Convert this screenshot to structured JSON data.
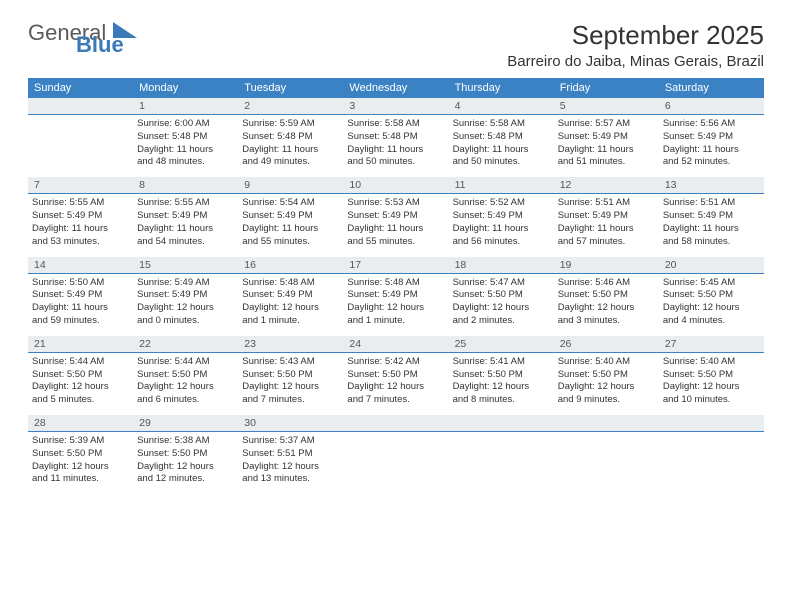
{
  "logo": {
    "general": "General",
    "blue": "Blue"
  },
  "title": "September 2025",
  "location": "Barreiro do Jaiba, Minas Gerais, Brazil",
  "colors": {
    "header_bg": "#3b82c4",
    "header_text": "#ffffff",
    "daynum_bg": "#e9edf0",
    "daynum_text": "#555555",
    "body_text": "#333333",
    "logo_gray": "#5a5a5a",
    "logo_blue": "#3a7ab8"
  },
  "day_names": [
    "Sunday",
    "Monday",
    "Tuesday",
    "Wednesday",
    "Thursday",
    "Friday",
    "Saturday"
  ],
  "weeks": [
    {
      "nums": [
        "",
        "1",
        "2",
        "3",
        "4",
        "5",
        "6"
      ],
      "cells": [
        null,
        {
          "sunrise": "Sunrise: 6:00 AM",
          "sunset": "Sunset: 5:48 PM",
          "day1": "Daylight: 11 hours",
          "day2": "and 48 minutes."
        },
        {
          "sunrise": "Sunrise: 5:59 AM",
          "sunset": "Sunset: 5:48 PM",
          "day1": "Daylight: 11 hours",
          "day2": "and 49 minutes."
        },
        {
          "sunrise": "Sunrise: 5:58 AM",
          "sunset": "Sunset: 5:48 PM",
          "day1": "Daylight: 11 hours",
          "day2": "and 50 minutes."
        },
        {
          "sunrise": "Sunrise: 5:58 AM",
          "sunset": "Sunset: 5:48 PM",
          "day1": "Daylight: 11 hours",
          "day2": "and 50 minutes."
        },
        {
          "sunrise": "Sunrise: 5:57 AM",
          "sunset": "Sunset: 5:49 PM",
          "day1": "Daylight: 11 hours",
          "day2": "and 51 minutes."
        },
        {
          "sunrise": "Sunrise: 5:56 AM",
          "sunset": "Sunset: 5:49 PM",
          "day1": "Daylight: 11 hours",
          "day2": "and 52 minutes."
        }
      ]
    },
    {
      "nums": [
        "7",
        "8",
        "9",
        "10",
        "11",
        "12",
        "13"
      ],
      "cells": [
        {
          "sunrise": "Sunrise: 5:55 AM",
          "sunset": "Sunset: 5:49 PM",
          "day1": "Daylight: 11 hours",
          "day2": "and 53 minutes."
        },
        {
          "sunrise": "Sunrise: 5:55 AM",
          "sunset": "Sunset: 5:49 PM",
          "day1": "Daylight: 11 hours",
          "day2": "and 54 minutes."
        },
        {
          "sunrise": "Sunrise: 5:54 AM",
          "sunset": "Sunset: 5:49 PM",
          "day1": "Daylight: 11 hours",
          "day2": "and 55 minutes."
        },
        {
          "sunrise": "Sunrise: 5:53 AM",
          "sunset": "Sunset: 5:49 PM",
          "day1": "Daylight: 11 hours",
          "day2": "and 55 minutes."
        },
        {
          "sunrise": "Sunrise: 5:52 AM",
          "sunset": "Sunset: 5:49 PM",
          "day1": "Daylight: 11 hours",
          "day2": "and 56 minutes."
        },
        {
          "sunrise": "Sunrise: 5:51 AM",
          "sunset": "Sunset: 5:49 PM",
          "day1": "Daylight: 11 hours",
          "day2": "and 57 minutes."
        },
        {
          "sunrise": "Sunrise: 5:51 AM",
          "sunset": "Sunset: 5:49 PM",
          "day1": "Daylight: 11 hours",
          "day2": "and 58 minutes."
        }
      ]
    },
    {
      "nums": [
        "14",
        "15",
        "16",
        "17",
        "18",
        "19",
        "20"
      ],
      "cells": [
        {
          "sunrise": "Sunrise: 5:50 AM",
          "sunset": "Sunset: 5:49 PM",
          "day1": "Daylight: 11 hours",
          "day2": "and 59 minutes."
        },
        {
          "sunrise": "Sunrise: 5:49 AM",
          "sunset": "Sunset: 5:49 PM",
          "day1": "Daylight: 12 hours",
          "day2": "and 0 minutes."
        },
        {
          "sunrise": "Sunrise: 5:48 AM",
          "sunset": "Sunset: 5:49 PM",
          "day1": "Daylight: 12 hours",
          "day2": "and 1 minute."
        },
        {
          "sunrise": "Sunrise: 5:48 AM",
          "sunset": "Sunset: 5:49 PM",
          "day1": "Daylight: 12 hours",
          "day2": "and 1 minute."
        },
        {
          "sunrise": "Sunrise: 5:47 AM",
          "sunset": "Sunset: 5:50 PM",
          "day1": "Daylight: 12 hours",
          "day2": "and 2 minutes."
        },
        {
          "sunrise": "Sunrise: 5:46 AM",
          "sunset": "Sunset: 5:50 PM",
          "day1": "Daylight: 12 hours",
          "day2": "and 3 minutes."
        },
        {
          "sunrise": "Sunrise: 5:45 AM",
          "sunset": "Sunset: 5:50 PM",
          "day1": "Daylight: 12 hours",
          "day2": "and 4 minutes."
        }
      ]
    },
    {
      "nums": [
        "21",
        "22",
        "23",
        "24",
        "25",
        "26",
        "27"
      ],
      "cells": [
        {
          "sunrise": "Sunrise: 5:44 AM",
          "sunset": "Sunset: 5:50 PM",
          "day1": "Daylight: 12 hours",
          "day2": "and 5 minutes."
        },
        {
          "sunrise": "Sunrise: 5:44 AM",
          "sunset": "Sunset: 5:50 PM",
          "day1": "Daylight: 12 hours",
          "day2": "and 6 minutes."
        },
        {
          "sunrise": "Sunrise: 5:43 AM",
          "sunset": "Sunset: 5:50 PM",
          "day1": "Daylight: 12 hours",
          "day2": "and 7 minutes."
        },
        {
          "sunrise": "Sunrise: 5:42 AM",
          "sunset": "Sunset: 5:50 PM",
          "day1": "Daylight: 12 hours",
          "day2": "and 7 minutes."
        },
        {
          "sunrise": "Sunrise: 5:41 AM",
          "sunset": "Sunset: 5:50 PM",
          "day1": "Daylight: 12 hours",
          "day2": "and 8 minutes."
        },
        {
          "sunrise": "Sunrise: 5:40 AM",
          "sunset": "Sunset: 5:50 PM",
          "day1": "Daylight: 12 hours",
          "day2": "and 9 minutes."
        },
        {
          "sunrise": "Sunrise: 5:40 AM",
          "sunset": "Sunset: 5:50 PM",
          "day1": "Daylight: 12 hours",
          "day2": "and 10 minutes."
        }
      ]
    },
    {
      "nums": [
        "28",
        "29",
        "30",
        "",
        "",
        "",
        ""
      ],
      "cells": [
        {
          "sunrise": "Sunrise: 5:39 AM",
          "sunset": "Sunset: 5:50 PM",
          "day1": "Daylight: 12 hours",
          "day2": "and 11 minutes."
        },
        {
          "sunrise": "Sunrise: 5:38 AM",
          "sunset": "Sunset: 5:50 PM",
          "day1": "Daylight: 12 hours",
          "day2": "and 12 minutes."
        },
        {
          "sunrise": "Sunrise: 5:37 AM",
          "sunset": "Sunset: 5:51 PM",
          "day1": "Daylight: 12 hours",
          "day2": "and 13 minutes."
        },
        null,
        null,
        null,
        null
      ]
    }
  ]
}
